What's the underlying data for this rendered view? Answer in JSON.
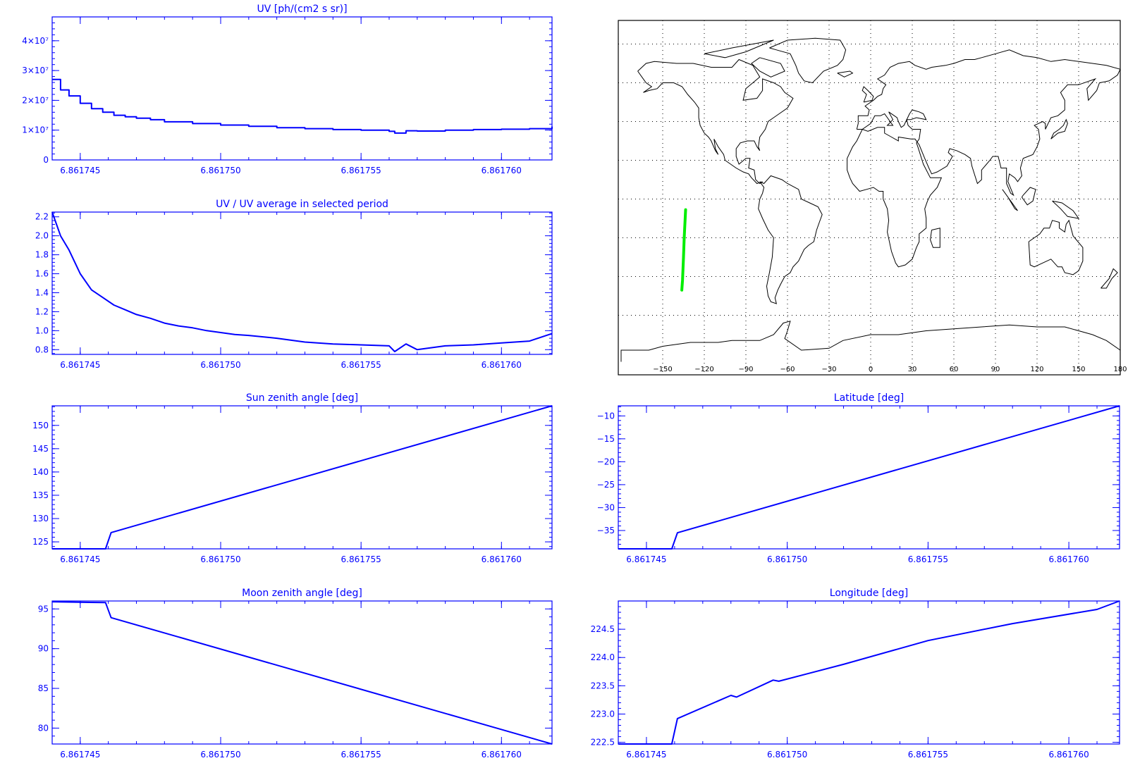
{
  "theme": {
    "plot_color": "#0000ff",
    "map_line_color": "#000000",
    "track_color": "#00ee00",
    "grid_color": "#000000"
  },
  "chart_data": [
    {
      "id": "uv",
      "type": "line",
      "title": "UV [ph/(cm2 s sr)]",
      "xlim": [
        6.861744,
        6.8617618
      ],
      "ylim": [
        0,
        48000000.0
      ],
      "xticks": [
        6.861745,
        6.86175,
        6.861755,
        6.86176
      ],
      "xtick_labels": [
        "6.861745",
        "6.861750",
        "6.861755",
        "6.861760"
      ],
      "yticks": [
        0,
        10000000.0,
        20000000.0,
        30000000.0,
        40000000.0
      ],
      "ytick_labels": [
        "0",
        "1×10⁷",
        "2×10⁷",
        "3×10⁷",
        "4×10⁷"
      ],
      "steps": true,
      "series": [
        {
          "x": [
            6.861744,
            6.8617443,
            6.8617446,
            6.861745,
            6.8617454,
            6.8617458,
            6.8617462,
            6.8617466,
            6.861747,
            6.8617475,
            6.861748,
            6.861749,
            6.86175,
            6.861751,
            6.861752,
            6.861753,
            6.861754,
            6.861755,
            6.861756,
            6.8617562,
            6.8617566,
            6.861757,
            6.861758,
            6.861759,
            6.86176,
            6.861761,
            6.8617618
          ],
          "y": [
            27000000.0,
            23500000.0,
            21500000.0,
            19000000.0,
            17200000.0,
            16000000.0,
            15000000.0,
            14500000.0,
            14000000.0,
            13500000.0,
            12800000.0,
            12200000.0,
            11700000.0,
            11300000.0,
            10800000.0,
            10500000.0,
            10200000.0,
            10000000.0,
            9600000.0,
            9000000.0,
            9800000.0,
            9700000.0,
            10000000.0,
            10200000.0,
            10300000.0,
            10500000.0,
            11200000.0
          ]
        }
      ]
    },
    {
      "id": "uv-ratio",
      "type": "line",
      "title": "UV / UV average in selected period",
      "xlim": [
        6.861744,
        6.8617618
      ],
      "ylim": [
        0.75,
        2.25
      ],
      "xticks": [
        6.861745,
        6.86175,
        6.861755,
        6.86176
      ],
      "xtick_labels": [
        "6.861745",
        "6.861750",
        "6.861755",
        "6.861760"
      ],
      "yticks": [
        0.8,
        1.0,
        1.2,
        1.4,
        1.6,
        1.8,
        2.0,
        2.2
      ],
      "ytick_labels": [
        "0.8",
        "1.0",
        "1.2",
        "1.4",
        "1.6",
        "1.8",
        "2.0",
        "2.2"
      ],
      "series": [
        {
          "x": [
            6.861744,
            6.8617443,
            6.8617446,
            6.861745,
            6.8617454,
            6.8617458,
            6.8617462,
            6.8617466,
            6.861747,
            6.8617475,
            6.861748,
            6.8617485,
            6.861749,
            6.8617495,
            6.86175,
            6.8617505,
            6.861751,
            6.861752,
            6.861753,
            6.861754,
            6.861755,
            6.861756,
            6.8617562,
            6.8617566,
            6.861757,
            6.861758,
            6.861759,
            6.86176,
            6.861761,
            6.8617618
          ],
          "y": [
            2.25,
            2.0,
            1.85,
            1.6,
            1.43,
            1.35,
            1.27,
            1.22,
            1.17,
            1.13,
            1.08,
            1.05,
            1.03,
            1.0,
            0.98,
            0.96,
            0.95,
            0.92,
            0.88,
            0.86,
            0.85,
            0.84,
            0.78,
            0.86,
            0.8,
            0.84,
            0.85,
            0.87,
            0.89,
            0.97
          ]
        }
      ]
    },
    {
      "id": "sun-zenith",
      "type": "line",
      "title": "Sun zenith angle [deg]",
      "xlim": [
        6.861744,
        6.8617618
      ],
      "ylim": [
        123.5,
        154.2
      ],
      "xticks": [
        6.861745,
        6.86175,
        6.861755,
        6.86176
      ],
      "xtick_labels": [
        "6.861745",
        "6.861750",
        "6.861755",
        "6.861760"
      ],
      "yticks": [
        125,
        130,
        135,
        140,
        145,
        150
      ],
      "ytick_labels": [
        "125",
        "130",
        "135",
        "140",
        "145",
        "150"
      ],
      "series": [
        {
          "x": [
            6.861744,
            6.8617459,
            6.8617461,
            6.8617618
          ],
          "y": [
            123.5,
            123.5,
            127.0,
            154.2
          ]
        }
      ]
    },
    {
      "id": "latitude",
      "type": "line",
      "title": "Latitude [deg]",
      "xlim": [
        6.861744,
        6.8617618
      ],
      "ylim": [
        -39.0,
        -7.8
      ],
      "xticks": [
        6.861745,
        6.86175,
        6.861755,
        6.86176
      ],
      "xtick_labels": [
        "6.861745",
        "6.861750",
        "6.861755",
        "6.861760"
      ],
      "yticks": [
        -35,
        -30,
        -25,
        -20,
        -15,
        -10
      ],
      "ytick_labels": [
        "−35",
        "−30",
        "−25",
        "−20",
        "−15",
        "−10"
      ],
      "series": [
        {
          "x": [
            6.861744,
            6.8617459,
            6.8617461,
            6.8617618
          ],
          "y": [
            -39.0,
            -39.0,
            -35.5,
            -7.8
          ]
        }
      ]
    },
    {
      "id": "moon-zenith",
      "type": "line",
      "title": "Moon zenith angle [deg]",
      "xlim": [
        6.861744,
        6.8617618
      ],
      "ylim": [
        78.0,
        96.0
      ],
      "xticks": [
        6.861745,
        6.86175,
        6.861755,
        6.86176
      ],
      "xtick_labels": [
        "6.861745",
        "6.861750",
        "6.861755",
        "6.861760"
      ],
      "yticks": [
        80,
        85,
        90,
        95
      ],
      "ytick_labels": [
        "80",
        "85",
        "90",
        "95"
      ],
      "series": [
        {
          "x": [
            6.861744,
            6.8617459,
            6.8617461,
            6.8617618
          ],
          "y": [
            95.9,
            95.8,
            93.9,
            78.0
          ]
        }
      ]
    },
    {
      "id": "longitude",
      "type": "line",
      "title": "Longitude [deg]",
      "xlim": [
        6.861744,
        6.8617618
      ],
      "ylim": [
        222.47,
        225.0
      ],
      "xticks": [
        6.861745,
        6.86175,
        6.861755,
        6.86176
      ],
      "xtick_labels": [
        "6.861745",
        "6.861750",
        "6.861755",
        "6.861760"
      ],
      "yticks": [
        222.5,
        223.0,
        223.5,
        224.0,
        224.5
      ],
      "ytick_labels": [
        "222.5",
        "223.0",
        "223.5",
        "224.0",
        "224.5"
      ],
      "series": [
        {
          "x": [
            6.861744,
            6.8617459,
            6.8617461,
            6.861748,
            6.8617482,
            6.8617495,
            6.8617497,
            6.861752,
            6.861755,
            6.861758,
            6.861761,
            6.8617618
          ],
          "y": [
            222.47,
            222.47,
            222.92,
            223.33,
            223.3,
            223.6,
            223.58,
            223.88,
            224.3,
            224.6,
            224.85,
            225.0
          ]
        }
      ]
    }
  ],
  "map": {
    "lon_ticks": [
      "−150",
      "−120",
      "−90",
      "−60",
      "−30",
      "0",
      "30",
      "60",
      "90",
      "120",
      "150",
      "180"
    ],
    "track": {
      "lon": [
        -133.5,
        -134.5,
        -135.0,
        -135.7,
        -136.2
      ],
      "lat": [
        -5.5,
        -20.0,
        -30.0,
        -42.0,
        -47.0
      ]
    }
  }
}
